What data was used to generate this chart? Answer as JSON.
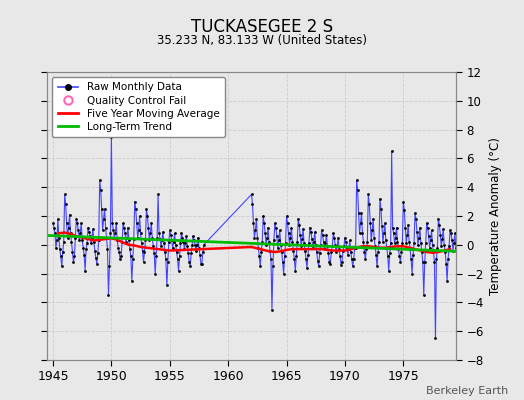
{
  "title": "TUCKASEGEE 2 S",
  "subtitle": "35.233 N, 83.133 W (United States)",
  "ylabel": "Temperature Anomaly (°C)",
  "credit": "Berkeley Earth",
  "xlim": [
    1944.5,
    1979.5
  ],
  "ylim": [
    -8,
    12
  ],
  "yticks": [
    -8,
    -6,
    -4,
    -2,
    0,
    2,
    4,
    6,
    8,
    10,
    12
  ],
  "xticks": [
    1945,
    1950,
    1955,
    1960,
    1965,
    1970,
    1975
  ],
  "background_color": "#e8e8e8",
  "plot_bg_color": "#e8e8e8",
  "raw_color": "#4444ff",
  "raw_marker_color": "#000000",
  "qc_color": "#ff66bb",
  "moving_avg_color": "#ff0000",
  "trend_color": "#00bb00",
  "legend_items": [
    "Raw Monthly Data",
    "Quality Control Fail",
    "Five Year Moving Average",
    "Long-Term Trend"
  ],
  "raw_data": [
    [
      1945.0,
      1.5
    ],
    [
      1945.083,
      1.2
    ],
    [
      1945.167,
      0.8
    ],
    [
      1945.25,
      -0.2
    ],
    [
      1945.333,
      0.3
    ],
    [
      1945.417,
      1.8
    ],
    [
      1945.5,
      0.5
    ],
    [
      1945.583,
      -0.3
    ],
    [
      1945.667,
      -0.8
    ],
    [
      1945.75,
      -1.5
    ],
    [
      1945.833,
      -0.5
    ],
    [
      1945.917,
      0.2
    ],
    [
      1946.0,
      3.5
    ],
    [
      1946.083,
      2.8
    ],
    [
      1946.167,
      1.5
    ],
    [
      1946.25,
      0.5
    ],
    [
      1946.333,
      1.2
    ],
    [
      1946.417,
      2.1
    ],
    [
      1946.5,
      0.8
    ],
    [
      1946.583,
      0.2
    ],
    [
      1946.667,
      -0.5
    ],
    [
      1946.75,
      -1.2
    ],
    [
      1946.833,
      -0.8
    ],
    [
      1946.917,
      0.5
    ],
    [
      1947.0,
      1.8
    ],
    [
      1947.083,
      1.5
    ],
    [
      1947.167,
      1.0
    ],
    [
      1947.25,
      0.3
    ],
    [
      1947.333,
      0.8
    ],
    [
      1947.417,
      1.5
    ],
    [
      1947.5,
      0.3
    ],
    [
      1947.583,
      -0.2
    ],
    [
      1947.667,
      -0.7
    ],
    [
      1947.75,
      -1.8
    ],
    [
      1947.833,
      -0.3
    ],
    [
      1947.917,
      0.1
    ],
    [
      1948.0,
      1.2
    ],
    [
      1948.083,
      0.9
    ],
    [
      1948.167,
      0.6
    ],
    [
      1948.25,
      0.1
    ],
    [
      1948.333,
      0.5
    ],
    [
      1948.417,
      1.1
    ],
    [
      1948.5,
      0.2
    ],
    [
      1948.583,
      -0.4
    ],
    [
      1948.667,
      -0.9
    ],
    [
      1948.75,
      -1.3
    ],
    [
      1948.833,
      -0.6
    ],
    [
      1948.917,
      0.3
    ],
    [
      1949.0,
      4.5
    ],
    [
      1949.083,
      3.8
    ],
    [
      1949.167,
      2.5
    ],
    [
      1949.25,
      1.0
    ],
    [
      1949.333,
      1.8
    ],
    [
      1949.417,
      2.5
    ],
    [
      1949.5,
      1.2
    ],
    [
      1949.583,
      0.5
    ],
    [
      1949.667,
      -0.3
    ],
    [
      1949.75,
      -3.5
    ],
    [
      1949.833,
      -1.5
    ],
    [
      1949.917,
      0.8
    ],
    [
      1950.0,
      7.5
    ],
    [
      1950.083,
      1.5
    ],
    [
      1950.167,
      1.0
    ],
    [
      1950.25,
      0.5
    ],
    [
      1950.333,
      0.8
    ],
    [
      1950.417,
      1.5
    ],
    [
      1950.5,
      0.3
    ],
    [
      1950.583,
      -0.2
    ],
    [
      1950.667,
      -0.5
    ],
    [
      1950.75,
      -1.0
    ],
    [
      1950.833,
      -0.8
    ],
    [
      1950.917,
      0.2
    ],
    [
      1951.0,
      1.5
    ],
    [
      1951.083,
      1.2
    ],
    [
      1951.167,
      0.8
    ],
    [
      1951.25,
      0.2
    ],
    [
      1951.333,
      0.5
    ],
    [
      1951.417,
      1.2
    ],
    [
      1951.5,
      0.3
    ],
    [
      1951.583,
      -0.3
    ],
    [
      1951.667,
      -0.8
    ],
    [
      1951.75,
      -2.5
    ],
    [
      1951.833,
      -1.0
    ],
    [
      1951.917,
      0.4
    ],
    [
      1952.0,
      3.0
    ],
    [
      1952.083,
      2.5
    ],
    [
      1952.167,
      1.5
    ],
    [
      1952.25,
      0.5
    ],
    [
      1952.333,
      1.0
    ],
    [
      1952.417,
      2.0
    ],
    [
      1952.5,
      0.8
    ],
    [
      1952.583,
      0.1
    ],
    [
      1952.667,
      -0.4
    ],
    [
      1952.75,
      -1.2
    ],
    [
      1952.833,
      -0.5
    ],
    [
      1952.917,
      0.3
    ],
    [
      1953.0,
      2.5
    ],
    [
      1953.083,
      2.0
    ],
    [
      1953.167,
      1.2
    ],
    [
      1953.25,
      0.3
    ],
    [
      1953.333,
      0.8
    ],
    [
      1953.417,
      1.5
    ],
    [
      1953.5,
      0.5
    ],
    [
      1953.583,
      -0.1
    ],
    [
      1953.667,
      -0.6
    ],
    [
      1953.75,
      -2.0
    ],
    [
      1953.833,
      -0.8
    ],
    [
      1953.917,
      0.5
    ],
    [
      1954.0,
      3.5
    ],
    [
      1954.083,
      0.8
    ],
    [
      1954.167,
      0.4
    ],
    [
      1954.25,
      -0.1
    ],
    [
      1954.333,
      0.3
    ],
    [
      1954.417,
      0.9
    ],
    [
      1954.5,
      0.1
    ],
    [
      1954.583,
      -0.5
    ],
    [
      1954.667,
      -1.0
    ],
    [
      1954.75,
      -2.8
    ],
    [
      1954.833,
      -1.2
    ],
    [
      1954.917,
      0.2
    ],
    [
      1955.0,
      1.0
    ],
    [
      1955.083,
      0.7
    ],
    [
      1955.167,
      0.3
    ],
    [
      1955.25,
      -0.2
    ],
    [
      1955.333,
      0.2
    ],
    [
      1955.417,
      0.8
    ],
    [
      1955.5,
      0.0
    ],
    [
      1955.583,
      -0.5
    ],
    [
      1955.667,
      -1.0
    ],
    [
      1955.75,
      -1.8
    ],
    [
      1955.833,
      -0.8
    ],
    [
      1955.917,
      0.1
    ],
    [
      1956.0,
      0.8
    ],
    [
      1956.083,
      0.5
    ],
    [
      1956.167,
      0.2
    ],
    [
      1956.25,
      -0.3
    ],
    [
      1956.333,
      0.1
    ],
    [
      1956.417,
      0.6
    ],
    [
      1956.5,
      -0.1
    ],
    [
      1956.583,
      -0.6
    ],
    [
      1956.667,
      -1.2
    ],
    [
      1956.75,
      -1.5
    ],
    [
      1956.833,
      -0.6
    ],
    [
      1956.917,
      0.0
    ],
    [
      1957.0,
      0.6
    ],
    [
      1957.083,
      0.3
    ],
    [
      1957.167,
      0.0
    ],
    [
      1957.25,
      -0.4
    ],
    [
      1957.333,
      0.0
    ],
    [
      1957.417,
      0.5
    ],
    [
      1957.5,
      -0.2
    ],
    [
      1957.583,
      -0.7
    ],
    [
      1957.667,
      -1.3
    ],
    [
      1957.75,
      -1.3
    ],
    [
      1957.833,
      -0.5
    ],
    [
      1957.917,
      0.0
    ],
    [
      1962.0,
      3.5
    ],
    [
      1962.083,
      2.8
    ],
    [
      1962.167,
      1.5
    ],
    [
      1962.25,
      0.5
    ],
    [
      1962.333,
      1.0
    ],
    [
      1962.417,
      1.8
    ],
    [
      1962.5,
      0.5
    ],
    [
      1962.583,
      -0.2
    ],
    [
      1962.667,
      -0.8
    ],
    [
      1962.75,
      -1.5
    ],
    [
      1962.833,
      -0.5
    ],
    [
      1962.917,
      0.2
    ],
    [
      1963.0,
      2.0
    ],
    [
      1963.083,
      1.5
    ],
    [
      1963.167,
      0.8
    ],
    [
      1963.25,
      0.0
    ],
    [
      1963.333,
      0.5
    ],
    [
      1963.417,
      1.2
    ],
    [
      1963.5,
      0.2
    ],
    [
      1963.583,
      -0.4
    ],
    [
      1963.667,
      -1.0
    ],
    [
      1963.75,
      -4.5
    ],
    [
      1963.833,
      -1.5
    ],
    [
      1963.917,
      0.3
    ],
    [
      1964.0,
      1.5
    ],
    [
      1964.083,
      1.2
    ],
    [
      1964.167,
      0.6
    ],
    [
      1964.25,
      -0.2
    ],
    [
      1964.333,
      0.3
    ],
    [
      1964.417,
      1.0
    ],
    [
      1964.5,
      0.0
    ],
    [
      1964.583,
      -0.5
    ],
    [
      1964.667,
      -1.2
    ],
    [
      1964.75,
      -2.0
    ],
    [
      1964.833,
      -0.8
    ],
    [
      1964.917,
      0.1
    ],
    [
      1965.0,
      2.0
    ],
    [
      1965.083,
      1.5
    ],
    [
      1965.167,
      0.8
    ],
    [
      1965.25,
      0.0
    ],
    [
      1965.333,
      0.5
    ],
    [
      1965.417,
      1.2
    ],
    [
      1965.5,
      0.2
    ],
    [
      1965.583,
      -0.4
    ],
    [
      1965.667,
      -1.0
    ],
    [
      1965.75,
      -1.8
    ],
    [
      1965.833,
      -0.8
    ],
    [
      1965.917,
      0.2
    ],
    [
      1966.0,
      1.8
    ],
    [
      1966.083,
      1.4
    ],
    [
      1966.167,
      0.7
    ],
    [
      1966.25,
      -0.1
    ],
    [
      1966.333,
      0.4
    ],
    [
      1966.417,
      1.1
    ],
    [
      1966.5,
      0.1
    ],
    [
      1966.583,
      -0.4
    ],
    [
      1966.667,
      -1.0
    ],
    [
      1966.75,
      -1.6
    ],
    [
      1966.833,
      -0.7
    ],
    [
      1966.917,
      0.1
    ],
    [
      1967.0,
      1.2
    ],
    [
      1967.083,
      0.9
    ],
    [
      1967.167,
      0.4
    ],
    [
      1967.25,
      -0.2
    ],
    [
      1967.333,
      0.2
    ],
    [
      1967.417,
      0.9
    ],
    [
      1967.5,
      0.0
    ],
    [
      1967.583,
      -0.5
    ],
    [
      1967.667,
      -1.1
    ],
    [
      1967.75,
      -1.5
    ],
    [
      1967.833,
      -0.6
    ],
    [
      1967.917,
      0.0
    ],
    [
      1968.0,
      1.0
    ],
    [
      1968.083,
      0.7
    ],
    [
      1968.167,
      0.2
    ],
    [
      1968.25,
      -0.3
    ],
    [
      1968.333,
      0.1
    ],
    [
      1968.417,
      0.7
    ],
    [
      1968.5,
      -0.1
    ],
    [
      1968.583,
      -0.6
    ],
    [
      1968.667,
      -1.2
    ],
    [
      1968.75,
      -1.3
    ],
    [
      1968.833,
      -0.5
    ],
    [
      1968.917,
      -0.1
    ],
    [
      1969.0,
      0.8
    ],
    [
      1969.083,
      0.5
    ],
    [
      1969.167,
      0.0
    ],
    [
      1969.25,
      -0.5
    ],
    [
      1969.333,
      -0.1
    ],
    [
      1969.417,
      0.5
    ],
    [
      1969.5,
      -0.3
    ],
    [
      1969.583,
      -0.8
    ],
    [
      1969.667,
      -1.4
    ],
    [
      1969.75,
      -1.2
    ],
    [
      1969.833,
      -0.4
    ],
    [
      1969.917,
      -0.1
    ],
    [
      1970.0,
      0.5
    ],
    [
      1970.083,
      0.2
    ],
    [
      1970.167,
      -0.2
    ],
    [
      1970.25,
      -0.7
    ],
    [
      1970.333,
      -0.3
    ],
    [
      1970.417,
      0.3
    ],
    [
      1970.5,
      -0.5
    ],
    [
      1970.583,
      -1.0
    ],
    [
      1970.667,
      -1.5
    ],
    [
      1970.75,
      -1.0
    ],
    [
      1970.833,
      -0.2
    ],
    [
      1970.917,
      -0.2
    ],
    [
      1971.0,
      4.5
    ],
    [
      1971.083,
      3.8
    ],
    [
      1971.167,
      2.2
    ],
    [
      1971.25,
      0.8
    ],
    [
      1971.333,
      1.5
    ],
    [
      1971.417,
      2.2
    ],
    [
      1971.5,
      0.8
    ],
    [
      1971.583,
      0.2
    ],
    [
      1971.667,
      -0.5
    ],
    [
      1971.75,
      -1.0
    ],
    [
      1971.833,
      -0.3
    ],
    [
      1971.917,
      0.2
    ],
    [
      1972.0,
      3.5
    ],
    [
      1972.083,
      2.8
    ],
    [
      1972.167,
      1.5
    ],
    [
      1972.25,
      0.3
    ],
    [
      1972.333,
      1.0
    ],
    [
      1972.417,
      1.8
    ],
    [
      1972.5,
      0.5
    ],
    [
      1972.583,
      -0.1
    ],
    [
      1972.667,
      -0.7
    ],
    [
      1972.75,
      -1.5
    ],
    [
      1972.833,
      -0.5
    ],
    [
      1972.917,
      0.2
    ],
    [
      1973.0,
      3.2
    ],
    [
      1973.083,
      2.5
    ],
    [
      1973.167,
      1.3
    ],
    [
      1973.25,
      0.2
    ],
    [
      1973.333,
      0.8
    ],
    [
      1973.417,
      1.5
    ],
    [
      1973.5,
      0.3
    ],
    [
      1973.583,
      -0.2
    ],
    [
      1973.667,
      -0.8
    ],
    [
      1973.75,
      -1.8
    ],
    [
      1973.833,
      -0.6
    ],
    [
      1973.917,
      0.1
    ],
    [
      1974.0,
      6.5
    ],
    [
      1974.083,
      1.2
    ],
    [
      1974.167,
      0.8
    ],
    [
      1974.25,
      0.1
    ],
    [
      1974.333,
      0.5
    ],
    [
      1974.417,
      1.2
    ],
    [
      1974.5,
      0.2
    ],
    [
      1974.583,
      -0.3
    ],
    [
      1974.667,
      -0.8
    ],
    [
      1974.75,
      -1.2
    ],
    [
      1974.833,
      -0.5
    ],
    [
      1974.917,
      0.1
    ],
    [
      1975.0,
      3.0
    ],
    [
      1975.083,
      2.4
    ],
    [
      1975.167,
      1.2
    ],
    [
      1975.25,
      0.1
    ],
    [
      1975.333,
      0.7
    ],
    [
      1975.417,
      1.4
    ],
    [
      1975.5,
      0.2
    ],
    [
      1975.583,
      -0.3
    ],
    [
      1975.667,
      -1.0
    ],
    [
      1975.75,
      -2.0
    ],
    [
      1975.833,
      -0.7
    ],
    [
      1975.917,
      0.1
    ],
    [
      1976.0,
      2.2
    ],
    [
      1976.083,
      1.8
    ],
    [
      1976.167,
      0.9
    ],
    [
      1976.25,
      0.0
    ],
    [
      1976.333,
      0.5
    ],
    [
      1976.417,
      1.2
    ],
    [
      1976.5,
      0.1
    ],
    [
      1976.583,
      -0.5
    ],
    [
      1976.667,
      -1.2
    ],
    [
      1976.75,
      -3.5
    ],
    [
      1976.833,
      -1.2
    ],
    [
      1976.917,
      0.1
    ],
    [
      1977.0,
      1.5
    ],
    [
      1977.083,
      1.2
    ],
    [
      1977.167,
      0.6
    ],
    [
      1977.25,
      -0.2
    ],
    [
      1977.333,
      0.3
    ],
    [
      1977.417,
      1.0
    ],
    [
      1977.5,
      0.0
    ],
    [
      1977.583,
      -0.5
    ],
    [
      1977.667,
      -1.2
    ],
    [
      1977.75,
      -6.5
    ],
    [
      1977.833,
      -1.0
    ],
    [
      1977.917,
      -0.2
    ],
    [
      1978.0,
      1.8
    ],
    [
      1978.083,
      1.4
    ],
    [
      1978.167,
      0.7
    ],
    [
      1978.25,
      -0.1
    ],
    [
      1978.333,
      0.4
    ],
    [
      1978.417,
      1.1
    ],
    [
      1978.5,
      0.0
    ],
    [
      1978.583,
      -0.5
    ],
    [
      1978.667,
      -1.3
    ],
    [
      1978.75,
      -2.5
    ],
    [
      1978.833,
      -1.0
    ],
    [
      1978.917,
      -0.1
    ],
    [
      1979.0,
      1.0
    ],
    [
      1979.083,
      0.8
    ],
    [
      1979.167,
      0.3
    ],
    [
      1979.25,
      -0.4
    ],
    [
      1979.333,
      0.1
    ],
    [
      1979.417,
      0.8
    ],
    [
      1979.5,
      -0.2
    ]
  ],
  "moving_avg_data": [
    [
      1945.5,
      0.8
    ],
    [
      1946.0,
      0.85
    ],
    [
      1946.5,
      0.75
    ],
    [
      1947.0,
      0.6
    ],
    [
      1947.5,
      0.5
    ],
    [
      1948.0,
      0.4
    ],
    [
      1948.5,
      0.3
    ],
    [
      1949.0,
      0.35
    ],
    [
      1949.5,
      0.4
    ],
    [
      1950.0,
      0.45
    ],
    [
      1950.5,
      0.35
    ],
    [
      1951.0,
      0.15
    ],
    [
      1951.5,
      0.0
    ],
    [
      1952.0,
      -0.05
    ],
    [
      1952.5,
      -0.15
    ],
    [
      1953.0,
      -0.2
    ],
    [
      1953.5,
      -0.25
    ],
    [
      1954.0,
      -0.3
    ],
    [
      1954.5,
      -0.35
    ],
    [
      1955.0,
      -0.4
    ],
    [
      1962.0,
      -0.15
    ],
    [
      1962.5,
      -0.25
    ],
    [
      1963.0,
      -0.35
    ],
    [
      1963.5,
      -0.45
    ],
    [
      1964.0,
      -0.5
    ],
    [
      1964.5,
      -0.45
    ],
    [
      1965.0,
      -0.35
    ],
    [
      1965.5,
      -0.3
    ],
    [
      1966.0,
      -0.3
    ],
    [
      1966.5,
      -0.3
    ],
    [
      1967.0,
      -0.3
    ],
    [
      1967.5,
      -0.3
    ],
    [
      1968.0,
      -0.3
    ],
    [
      1968.5,
      -0.35
    ],
    [
      1969.0,
      -0.4
    ],
    [
      1969.5,
      -0.4
    ],
    [
      1970.0,
      -0.4
    ],
    [
      1970.5,
      -0.3
    ],
    [
      1971.0,
      -0.2
    ],
    [
      1971.5,
      -0.1
    ],
    [
      1972.0,
      -0.1
    ],
    [
      1972.5,
      -0.15
    ],
    [
      1973.0,
      -0.2
    ],
    [
      1973.5,
      -0.2
    ],
    [
      1974.0,
      -0.15
    ],
    [
      1974.5,
      -0.1
    ],
    [
      1975.0,
      -0.1
    ],
    [
      1975.5,
      -0.2
    ],
    [
      1976.0,
      -0.3
    ],
    [
      1976.5,
      -0.4
    ],
    [
      1977.0,
      -0.5
    ],
    [
      1977.5,
      -0.55
    ],
    [
      1978.0,
      -0.5
    ],
    [
      1978.5,
      -0.4
    ],
    [
      1979.0,
      -0.3
    ]
  ],
  "trend_x": [
    1944.5,
    1979.5
  ],
  "trend_y": [
    0.65,
    -0.45
  ]
}
